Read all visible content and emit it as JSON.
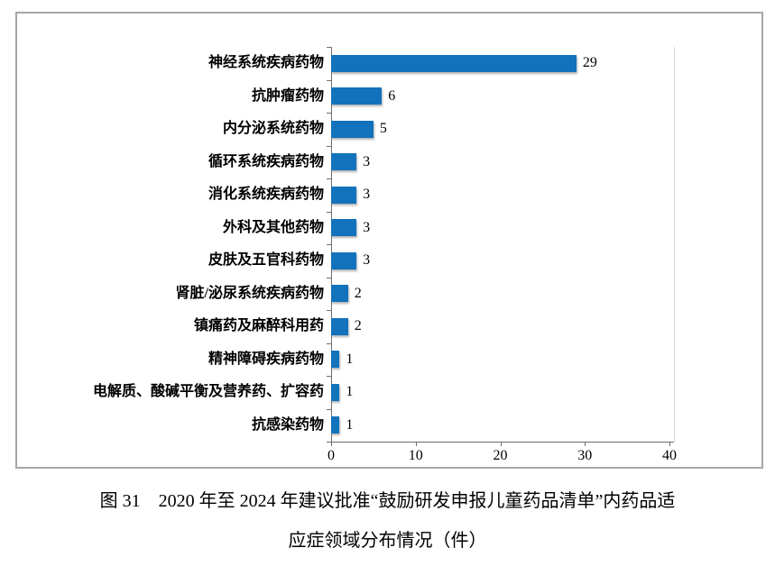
{
  "chart_data": {
    "type": "bar",
    "orientation": "horizontal",
    "categories": [
      "神经系统疾病药物",
      "抗肿瘤药物",
      "内分泌系统药物",
      "循环系统疾病药物",
      "消化系统疾病药物",
      "外科及其他药物",
      "皮肤及五官科药物",
      "肾脏/泌尿系统疾病药物",
      "镇痛药及麻醉科用药",
      "精神障碍疾病药物",
      "电解质、酸碱平衡及营养药、扩容药",
      "抗感染药物"
    ],
    "values": [
      29,
      6,
      5,
      3,
      3,
      3,
      3,
      2,
      2,
      1,
      1,
      1
    ],
    "value_labels": [
      "29",
      "6",
      "5",
      "3",
      "3",
      "3",
      "3",
      "2",
      "2",
      "1",
      "1",
      "1"
    ],
    "x_ticks": [
      0,
      10,
      20,
      30,
      40
    ],
    "x_tick_labels": [
      "0",
      "10",
      "20",
      "30",
      "40"
    ],
    "xlim": [
      0,
      40
    ],
    "grid": false,
    "legend": false,
    "data_labels": "outside-end",
    "colors": {
      "bar": "#1272bc",
      "axis": "#6e6e6e",
      "figure_border": "#a6a6a6",
      "plot_border": "#d9d9d9",
      "background": "#ffffff"
    }
  },
  "caption": {
    "line1": "图 31　2020 年至 2024 年建议批准“鼓励研发申报儿童药品清单”内药品适",
    "line2": "应症领域分布情况（件）"
  }
}
